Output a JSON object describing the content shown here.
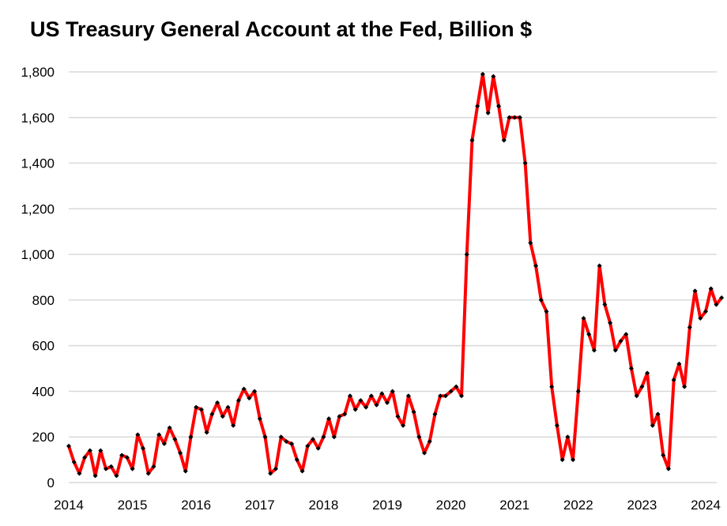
{
  "chart_data": {
    "type": "line",
    "title": "US Treasury General Account at the Fed, Billion $",
    "xlabel": "",
    "ylabel": "",
    "ylim": [
      0,
      1800
    ],
    "xlim": [
      "2014-01-01",
      "2024-04-01"
    ],
    "yticks": [
      "0",
      "200",
      "400",
      "600",
      "800",
      "1,000",
      "1,200",
      "1,400",
      "1,600",
      "1,800"
    ],
    "xticks": [
      "2014",
      "2015",
      "2016",
      "2017",
      "2018",
      "2019",
      "2020",
      "2021",
      "2022",
      "2023",
      "2024"
    ],
    "grid": "horizontal",
    "legend": "none",
    "colors": {
      "line": "#ff0000",
      "marker": "#000000",
      "grid": "#d9d9d9"
    },
    "series": [
      {
        "x": [
          "2014-01",
          "2014-02",
          "2014-03",
          "2014-04",
          "2014-05",
          "2014-06",
          "2014-07",
          "2014-08",
          "2014-09",
          "2014-10",
          "2014-11",
          "2014-12",
          "2015-01",
          "2015-02",
          "2015-03",
          "2015-04",
          "2015-05",
          "2015-06",
          "2015-07",
          "2015-08",
          "2015-09",
          "2015-10",
          "2015-11",
          "2015-12",
          "2016-01",
          "2016-02",
          "2016-03",
          "2016-04",
          "2016-05",
          "2016-06",
          "2016-07",
          "2016-08",
          "2016-09",
          "2016-10",
          "2016-11",
          "2016-12",
          "2017-01",
          "2017-02",
          "2017-03",
          "2017-04",
          "2017-05",
          "2017-06",
          "2017-07",
          "2017-08",
          "2017-09",
          "2017-10",
          "2017-11",
          "2017-12",
          "2018-01",
          "2018-02",
          "2018-03",
          "2018-04",
          "2018-05",
          "2018-06",
          "2018-07",
          "2018-08",
          "2018-09",
          "2018-10",
          "2018-11",
          "2018-12",
          "2019-01",
          "2019-02",
          "2019-03",
          "2019-04",
          "2019-05",
          "2019-06",
          "2019-07",
          "2019-08",
          "2019-09",
          "2019-10",
          "2019-11",
          "2019-12",
          "2020-01",
          "2020-02",
          "2020-03",
          "2020-04",
          "2020-05",
          "2020-06",
          "2020-07",
          "2020-08",
          "2020-09",
          "2020-10",
          "2020-11",
          "2020-12",
          "2021-01",
          "2021-02",
          "2021-03",
          "2021-04",
          "2021-05",
          "2021-06",
          "2021-07",
          "2021-08",
          "2021-09",
          "2021-10",
          "2021-11",
          "2021-12",
          "2022-01",
          "2022-02",
          "2022-03",
          "2022-04",
          "2022-05",
          "2022-06",
          "2022-07",
          "2022-08",
          "2022-09",
          "2022-10",
          "2022-11",
          "2022-12",
          "2023-01",
          "2023-02",
          "2023-03",
          "2023-04",
          "2023-05",
          "2023-06",
          "2023-07",
          "2023-08",
          "2023-09",
          "2023-10",
          "2023-11",
          "2023-12",
          "2024-01",
          "2024-02",
          "2024-03",
          "2024-04"
        ],
        "values": [
          160,
          90,
          40,
          110,
          140,
          30,
          140,
          60,
          70,
          30,
          120,
          110,
          60,
          210,
          150,
          40,
          70,
          210,
          170,
          240,
          190,
          130,
          50,
          200,
          330,
          320,
          220,
          300,
          350,
          290,
          330,
          250,
          360,
          410,
          370,
          400,
          280,
          200,
          40,
          60,
          200,
          180,
          170,
          100,
          50,
          160,
          190,
          150,
          200,
          280,
          200,
          290,
          300,
          380,
          320,
          360,
          330,
          380,
          340,
          390,
          350,
          400,
          290,
          250,
          380,
          310,
          200,
          130,
          180,
          300,
          380,
          380,
          400,
          420,
          380,
          1000,
          1500,
          1650,
          1790,
          1620,
          1780,
          1650,
          1500,
          1600,
          1600,
          1600,
          1400,
          1050,
          950,
          800,
          750,
          420,
          250,
          100,
          200,
          100,
          400,
          720,
          650,
          580,
          950,
          780,
          700,
          580,
          620,
          650,
          500,
          380,
          420,
          480,
          250,
          300,
          120,
          60,
          450,
          520,
          420,
          680,
          840,
          720,
          750,
          850,
          780,
          810
        ]
      }
    ]
  }
}
